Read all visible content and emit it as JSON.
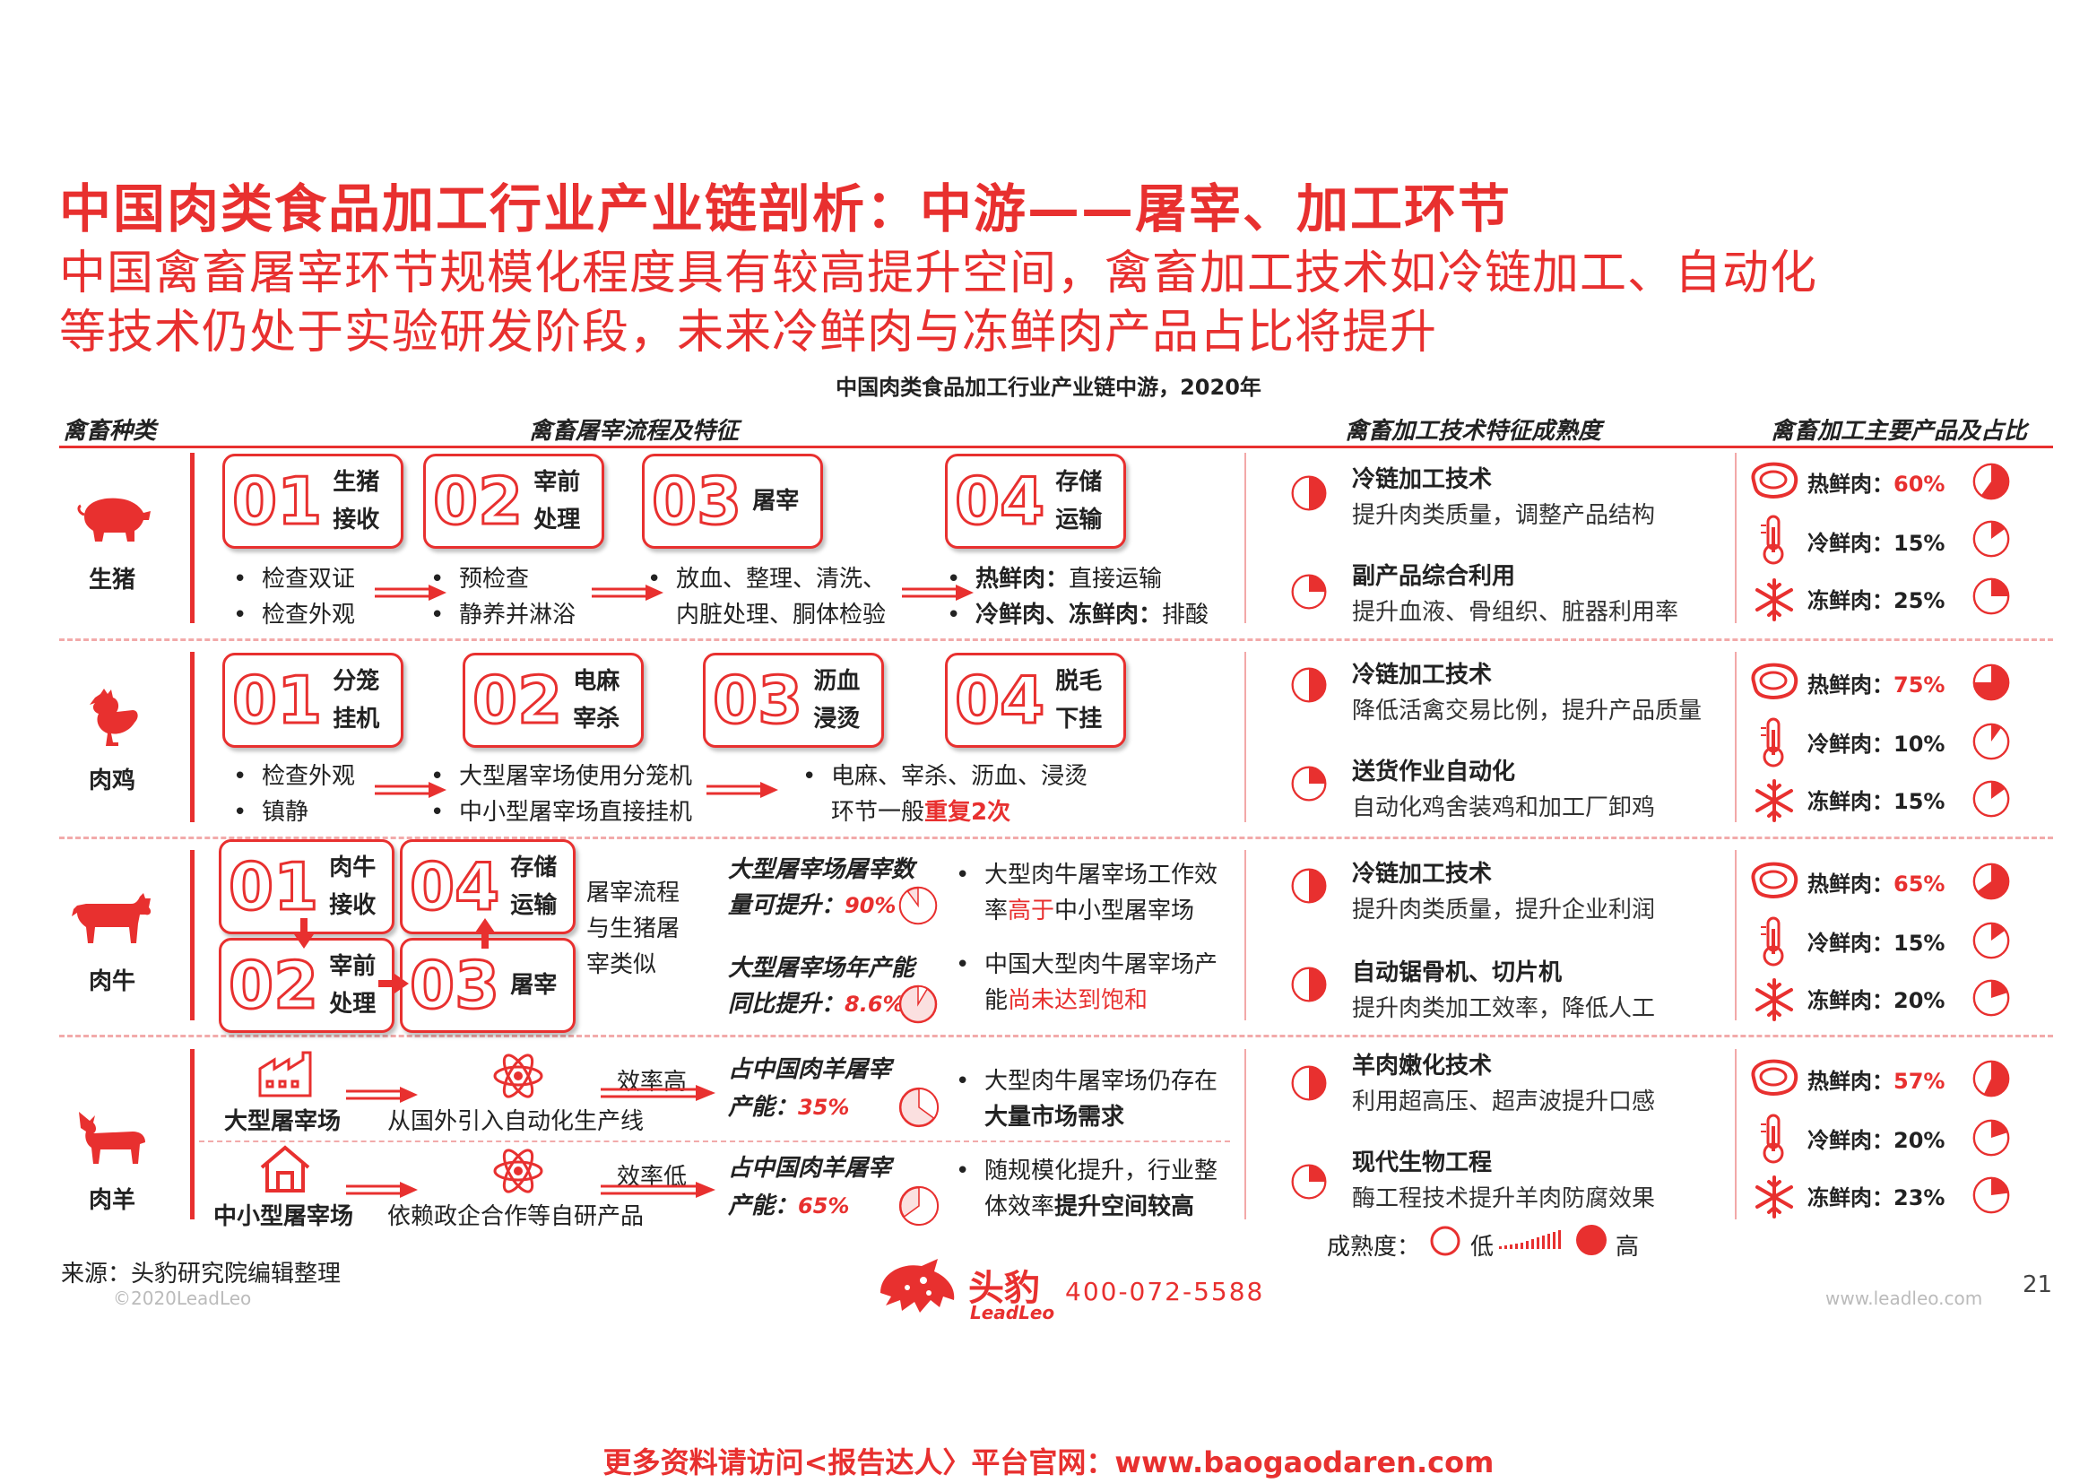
{
  "header": {
    "title": "中国肉类食品加工行业产业链剖析：中游——屠宰、加工环节",
    "subtitle_line1": "中国禽畜屠宰环节规模化程度具有较高提升空间，禽畜加工技术如冷链加工、自动化",
    "subtitle_line2": "等技术仍处于实验研发阶段，未来冷鲜肉与冻鲜肉产品占比将提升",
    "chart_title": "中国肉类食品加工行业产业链中游，2020年"
  },
  "columns": {
    "c1": "禽畜种类",
    "c2": "禽畜屠宰流程及特征",
    "c3": "禽畜加工技术特征成熟度",
    "c4": "禽畜加工主要产品及占比"
  },
  "pig": {
    "name": "生猪",
    "steps": [
      {
        "num": "01",
        "l1": "生猪",
        "l2": "接收"
      },
      {
        "num": "02",
        "l1": "宰前",
        "l2": "处理"
      },
      {
        "num": "03",
        "l1": "屠宰",
        "l2": ""
      },
      {
        "num": "04",
        "l1": "存储",
        "l2": "运输"
      }
    ],
    "b1a": "检查双证",
    "b1b": "检查外观",
    "b2a": "预检查",
    "b2b": "静养并淋浴",
    "b3a": "放血、整理、清洗、",
    "b3b": "内脏处理、胴体检验",
    "b4a_bold": "热鲜肉：",
    "b4a": "直接运输",
    "b4b_bold": "冷鲜肉、冻鲜肉：",
    "b4b": "排酸",
    "tech": [
      {
        "title": "冷链加工技术",
        "desc": "提升肉类质量，调整产品结构",
        "maturity": 0.5
      },
      {
        "title": "副产品综合利用",
        "desc": "提升血液、骨组织、脏器利用率",
        "maturity": 0.25
      }
    ],
    "products": [
      {
        "label": "热鲜肉：",
        "value": "60%",
        "share": 0.6,
        "red": true
      },
      {
        "label": "冷鲜肉：",
        "value": "15%",
        "share": 0.15,
        "red": false
      },
      {
        "label": "冻鲜肉：",
        "value": "25%",
        "share": 0.25,
        "red": false
      }
    ]
  },
  "chicken": {
    "name": "肉鸡",
    "steps": [
      {
        "num": "01",
        "l1": "分笼",
        "l2": "挂机"
      },
      {
        "num": "02",
        "l1": "电麻",
        "l2": "宰杀"
      },
      {
        "num": "03",
        "l1": "沥血",
        "l2": "浸烫"
      },
      {
        "num": "04",
        "l1": "脱毛",
        "l2": "下挂"
      }
    ],
    "b1a": "检查外观",
    "b1b": "镇静",
    "b2a": "大型屠宰场使用分笼机",
    "b2b": "中小型屠宰场直接挂机",
    "b3a": "电麻、宰杀、沥血、浸烫",
    "b3b": "环节一般",
    "b3b_red": "重复2次",
    "tech": [
      {
        "title": "冷链加工技术",
        "desc": "降低活禽交易比例，提升产品质量",
        "maturity": 0.5
      },
      {
        "title": "送货作业自动化",
        "desc": "自动化鸡舍装鸡和加工厂卸鸡",
        "maturity": 0.25
      }
    ],
    "products": [
      {
        "label": "热鲜肉：",
        "value": "75%",
        "share": 0.75,
        "red": true
      },
      {
        "label": "冷鲜肉：",
        "value": "10%",
        "share": 0.1,
        "red": false
      },
      {
        "label": "冻鲜肉：",
        "value": "15%",
        "share": 0.15,
        "red": false
      }
    ]
  },
  "cattle": {
    "name": "肉牛",
    "steps": [
      {
        "num": "01",
        "l1": "肉牛",
        "l2": "接收"
      },
      {
        "num": "04",
        "l1": "存储",
        "l2": "运输"
      },
      {
        "num": "02",
        "l1": "宰前",
        "l2": "处理"
      },
      {
        "num": "03",
        "l1": "屠宰",
        "l2": ""
      }
    ],
    "note1": "屠宰流程",
    "note2": "与生猪屠",
    "note3": "宰类似",
    "stat1a": "大型屠宰场屠宰数",
    "stat1b": "量可提升：",
    "stat1v": "90%",
    "stat1share": 0.9,
    "stat2a": "大型屠宰场年产能",
    "stat2b": "同比提升：",
    "stat2v": "8.6%",
    "stat2share": 0.086,
    "p1a": "大型肉牛屠宰场工作效",
    "p1b": "率",
    "p1b_red": "高于",
    "p1b_end": "中小型屠宰场",
    "p2a": "中国大型肉牛屠宰场产",
    "p2b": "能",
    "p2b_red": "尚未达到饱和",
    "tech": [
      {
        "title": "冷链加工技术",
        "desc": "提升肉类质量，提升企业利润",
        "maturity": 0.5
      },
      {
        "title": "自动锯骨机、切片机",
        "desc": "提升肉类加工效率，降低人工",
        "maturity": 0.5
      }
    ],
    "products": [
      {
        "label": "热鲜肉：",
        "value": "65%",
        "share": 0.65,
        "red": true
      },
      {
        "label": "冷鲜肉：",
        "value": "15%",
        "share": 0.15,
        "red": false
      },
      {
        "label": "冻鲜肉：",
        "value": "20%",
        "share": 0.2,
        "red": false
      }
    ]
  },
  "sheep": {
    "name": "肉羊",
    "large": "大型屠宰场",
    "large_desc": "从国外引入自动化生产线",
    "eff_high": "效率高",
    "small": "中小型屠宰场",
    "small_desc": "依赖政企合作等自研产品",
    "eff_low": "效率低",
    "stat1a": "占中国肉羊屠宰",
    "stat1b": "产能：",
    "stat1v": "35%",
    "stat1share": 0.35,
    "stat2a": "占中国肉羊屠宰",
    "stat2b": "产能：",
    "stat2v": "65%",
    "stat2share": 0.65,
    "p1a": "大型肉牛屠宰场仍存在",
    "p1b_bold": "大量市场需求",
    "p2a": "随规模化提升，行业整",
    "p2b": "体效率",
    "p2b_bold": "提升空间较高",
    "tech": [
      {
        "title": "羊肉嫩化技术",
        "desc": "利用超高压、超声波提升口感",
        "maturity": 0.5
      },
      {
        "title": "现代生物工程",
        "desc": "酶工程技术提升羊肉防腐效果",
        "maturity": 0.25
      }
    ],
    "products": [
      {
        "label": "热鲜肉：",
        "value": "57%",
        "share": 0.57,
        "red": true
      },
      {
        "label": "冷鲜肉：",
        "value": "20%",
        "share": 0.2,
        "red": false
      },
      {
        "label": "冻鲜肉：",
        "value": "23%",
        "share": 0.23,
        "red": false
      }
    ]
  },
  "legend": {
    "label": "成熟度：",
    "low": "低",
    "high": "高"
  },
  "footer": {
    "source": "来源：头豹研究院编辑整理",
    "copyright": "©2020LeadLeo",
    "brand_cn": "头豹",
    "brand_en": "LeadLeo",
    "phone": "400-072-5588",
    "site": "www.leadleo.com",
    "page": "21",
    "banner": "更多资料请访问<报告达人〉平台官网：www.baogaodaren.com"
  },
  "colors": {
    "accent": "#E8302F",
    "light": "#F2AAAA"
  }
}
